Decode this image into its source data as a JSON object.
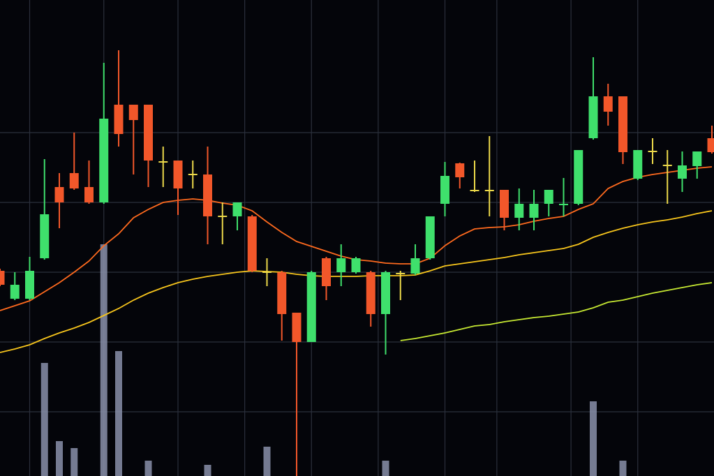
{
  "chart_data": {
    "type": "candlestick",
    "x": [
      0,
      1,
      2,
      3,
      4,
      5,
      6,
      7,
      8,
      9,
      10,
      11,
      12,
      13,
      14,
      15,
      16,
      17,
      18,
      19,
      20,
      21,
      22,
      23,
      24,
      25,
      26,
      27,
      28,
      29,
      30,
      31,
      32,
      33,
      34,
      35,
      36,
      37,
      38,
      39,
      40,
      41,
      42,
      43,
      44,
      45,
      46,
      47,
      48
    ],
    "categories": [
      null,
      null,
      null,
      null,
      null,
      null,
      null,
      null,
      null,
      null,
      null,
      null,
      null,
      null,
      null,
      null,
      null,
      null,
      null,
      null,
      null,
      null,
      null,
      null,
      null,
      null,
      null,
      null,
      null,
      null,
      null,
      null,
      null,
      null,
      null,
      null,
      null,
      null,
      null,
      null,
      null,
      null,
      null,
      null,
      null,
      null,
      null,
      null,
      null
    ],
    "open": [
      294,
      254,
      254,
      312,
      414,
      434,
      414,
      392,
      532,
      532,
      532,
      451,
      452,
      433,
      432,
      373,
      372,
      372,
      293,
      292,
      234,
      192,
      312,
      292,
      292,
      292,
      232,
      291,
      290,
      312,
      390,
      448,
      410,
      410,
      410,
      370,
      370,
      390,
      388,
      390,
      484,
      544,
      544,
      426,
      466,
      446,
      426,
      444,
      484
    ],
    "high": [
      297,
      292,
      314,
      454,
      434,
      492,
      452,
      592,
      610,
      532,
      532,
      472,
      452,
      452,
      472,
      392,
      392,
      374,
      312,
      294,
      234,
      294,
      314,
      332,
      314,
      294,
      294,
      294,
      332,
      372,
      450,
      449,
      452,
      487,
      410,
      412,
      410,
      410,
      427,
      467,
      600,
      562,
      544,
      467,
      484,
      467,
      465,
      465,
      502
    ],
    "low": [
      272,
      252,
      252,
      310,
      355,
      410,
      390,
      390,
      472,
      432,
      414,
      414,
      374,
      412,
      332,
      332,
      352,
      292,
      272,
      194,
      0,
      192,
      252,
      272,
      290,
      214,
      174,
      252,
      288,
      310,
      372,
      412,
      407,
      372,
      352,
      352,
      352,
      372,
      372,
      388,
      482,
      502,
      447,
      424,
      447,
      390,
      407,
      426,
      462
    ],
    "close": [
      274,
      274,
      294,
      375,
      392,
      412,
      392,
      512,
      490,
      510,
      452,
      451,
      412,
      433,
      372,
      373,
      392,
      294,
      293,
      232,
      192,
      292,
      272,
      312,
      312,
      232,
      292,
      291,
      312,
      372,
      430,
      428,
      410,
      410,
      370,
      390,
      390,
      410,
      390,
      467,
      544,
      522,
      464,
      467,
      466,
      446,
      445,
      465,
      464
    ],
    "volume": [
      null,
      null,
      null,
      162,
      50,
      40,
      null,
      332,
      179,
      null,
      22,
      null,
      null,
      null,
      16,
      null,
      null,
      null,
      42,
      null,
      null,
      null,
      null,
      null,
      null,
      null,
      22,
      null,
      null,
      null,
      null,
      null,
      null,
      null,
      null,
      null,
      null,
      null,
      null,
      null,
      107,
      null,
      22,
      null,
      null,
      null,
      null,
      null,
      null
    ],
    "up_color": "#3fe06c",
    "down_color": "#f2572a",
    "flat_color": "#ecd94a",
    "volume_color": "#8a90aa",
    "series": [
      {
        "color": "#ff6a1e",
        "values": [
          237,
          244,
          251,
          264,
          277,
          292,
          308,
          330,
          347,
          370,
          382,
          392,
          395,
          397,
          395,
          391,
          388,
          380,
          364,
          349,
          336,
          329,
          322,
          315,
          310,
          308,
          305,
          304,
          304,
          312,
          330,
          344,
          354,
          356,
          357,
          360,
          365,
          369,
          372,
          382,
          390,
          412,
          422,
          428,
          432,
          435,
          438,
          441,
          443
        ]
      },
      {
        "color": "#f7c51c",
        "values": [
          177,
          182,
          188,
          197,
          205,
          212,
          220,
          230,
          240,
          252,
          262,
          270,
          277,
          282,
          286,
          289,
          292,
          294,
          293,
          292,
          289,
          287,
          286,
          286,
          286,
          287,
          287,
          287,
          288,
          294,
          301,
          304,
          307,
          310,
          313,
          317,
          320,
          323,
          326,
          332,
          342,
          349,
          355,
          360,
          364,
          367,
          371,
          376,
          380
        ]
      },
      {
        "color": "#c6e832",
        "values": [
          null,
          null,
          null,
          null,
          null,
          null,
          null,
          null,
          null,
          null,
          null,
          null,
          null,
          null,
          null,
          null,
          null,
          null,
          null,
          null,
          null,
          null,
          null,
          null,
          null,
          null,
          null,
          194,
          197,
          201,
          205,
          210,
          215,
          217,
          221,
          224,
          227,
          229,
          232,
          235,
          241,
          249,
          252,
          257,
          262,
          266,
          270,
          274,
          277
        ]
      }
    ],
    "xlim": [
      0,
      48
    ],
    "ylim": [
      0,
      682
    ],
    "xticks": [
      2,
      7,
      12,
      16.5,
      21,
      25.5,
      30,
      33.5,
      38.5,
      43
    ],
    "yticks": [
      92,
      192,
      292,
      392,
      492
    ],
    "grid": true
  }
}
